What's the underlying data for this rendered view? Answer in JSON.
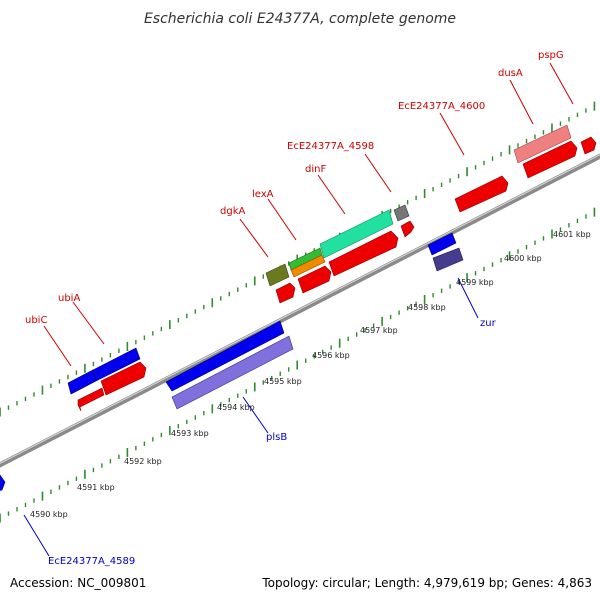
{
  "title": "Escherichia coli E24377A, complete genome",
  "footer": {
    "accession": "Accession: NC_009801",
    "topology": "Topology: circular; Length: 4,979,619 bp; Genes: 4,863"
  },
  "colors": {
    "forward_gene": "#ee0000",
    "reverse_gene": "#0000ee",
    "forward_label": "#cc0000",
    "reverse_label": "#0000cc",
    "backbone": "#888888",
    "tick": "#2e8b2e"
  },
  "ticks": [
    "4590 kbp",
    "4591 kbp",
    "4592 kbp",
    "4593 kbp",
    "4594 kbp",
    "4595 kbp",
    "4596 kbp",
    "4597 kbp",
    "4598 kbp",
    "4599 kbp",
    "4600 kbp",
    "4601 kbp"
  ],
  "forward_labels": [
    "ubiC",
    "ubiA",
    "dgkA",
    "lexA",
    "dinF",
    "EcE24377A_4598",
    "EcE24377A_4600",
    "dusA",
    "pspG"
  ],
  "reverse_labels": [
    "EcE24377A_4589",
    "plsB",
    "zur"
  ]
}
